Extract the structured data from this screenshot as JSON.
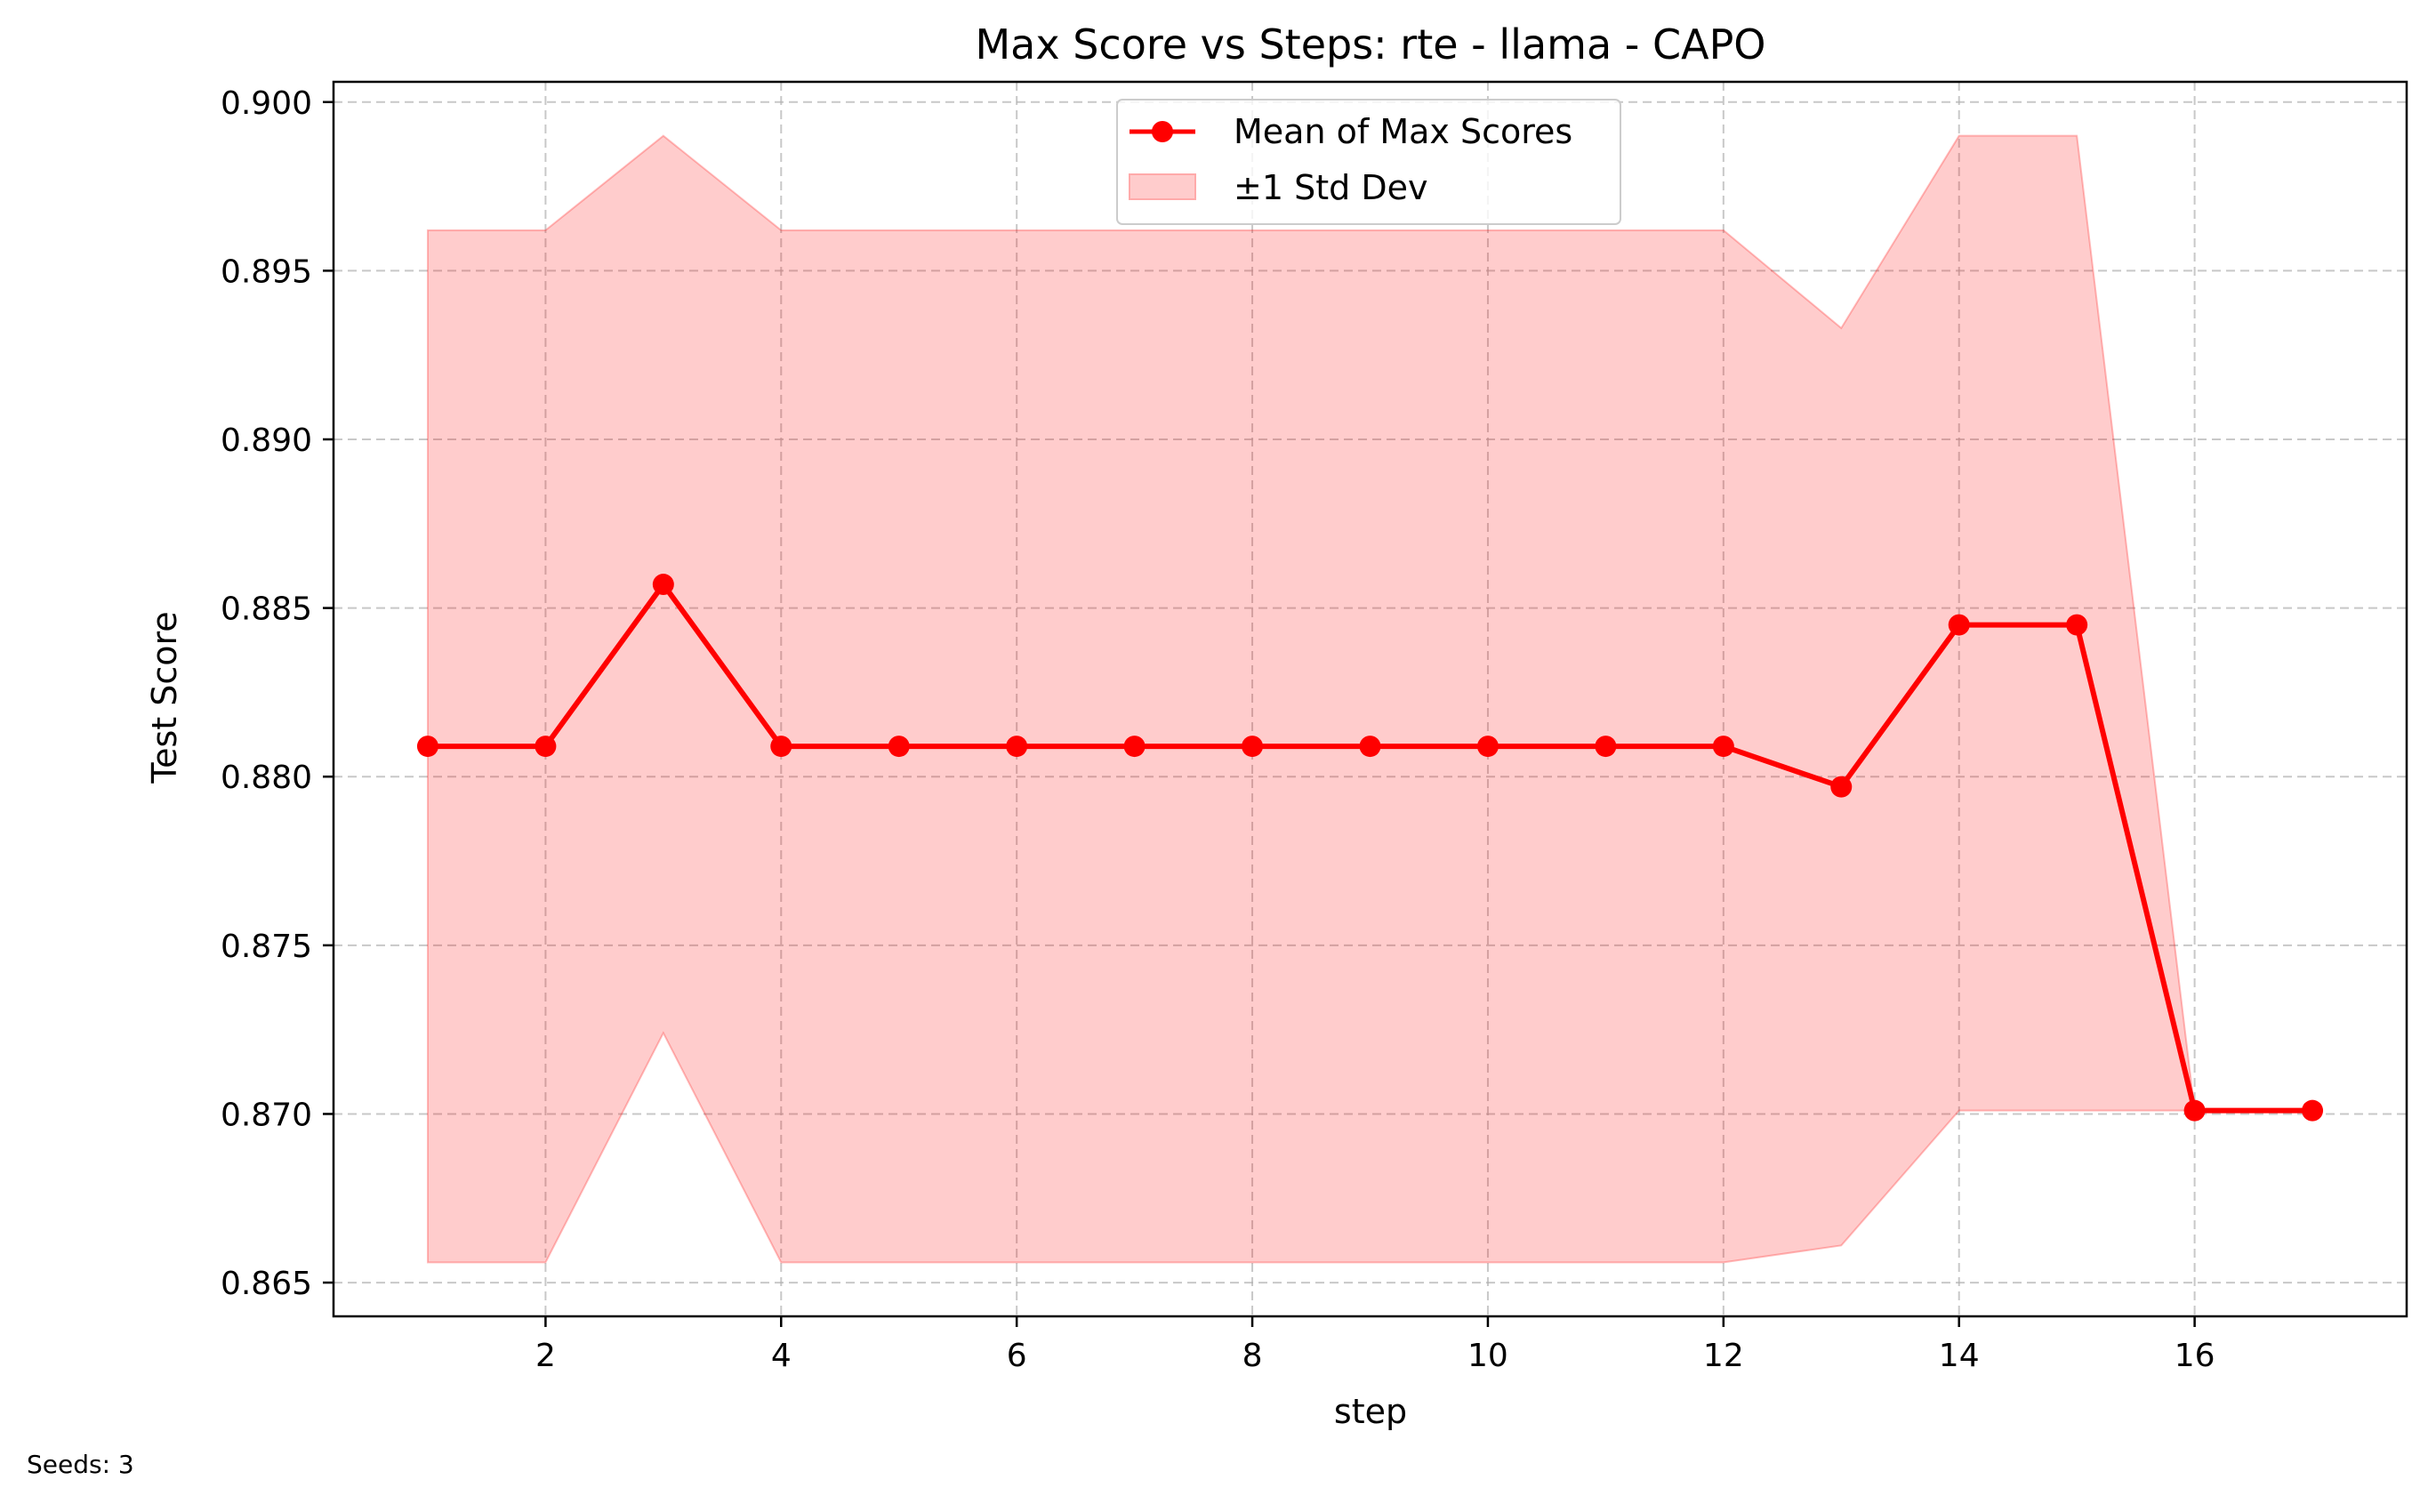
{
  "chart_data": {
    "type": "line",
    "title": "Max Score vs Steps: rte - llama - CAPO",
    "xlabel": "step",
    "ylabel": "Test Score",
    "x": [
      1,
      2,
      3,
      4,
      5,
      6,
      7,
      8,
      9,
      10,
      11,
      12,
      13,
      14,
      15,
      16,
      17
    ],
    "series": [
      {
        "name": "Mean of Max Scores",
        "color": "#ff0000",
        "values": [
          0.8809,
          0.8809,
          0.8857,
          0.8809,
          0.8809,
          0.8809,
          0.8809,
          0.8809,
          0.8809,
          0.8809,
          0.8809,
          0.8809,
          0.8797,
          0.8845,
          0.8845,
          0.8701,
          0.8701
        ]
      }
    ],
    "band": {
      "name": "±1 Std Dev",
      "color": "#ff0000",
      "opacity": 0.2,
      "upper": [
        0.8962,
        0.8962,
        0.899,
        0.8962,
        0.8962,
        0.8962,
        0.8962,
        0.8962,
        0.8962,
        0.8962,
        0.8962,
        0.8962,
        0.8933,
        0.899,
        0.899,
        0.8701,
        0.8701
      ],
      "lower": [
        0.8656,
        0.8656,
        0.8724,
        0.8656,
        0.8656,
        0.8656,
        0.8656,
        0.8656,
        0.8656,
        0.8656,
        0.8656,
        0.8656,
        0.8661,
        0.8701,
        0.8701,
        0.8701,
        0.8701
      ]
    },
    "xticks": [
      2,
      4,
      6,
      8,
      10,
      12,
      14,
      16
    ],
    "yticks": [
      0.865,
      0.87,
      0.875,
      0.88,
      0.885,
      0.89,
      0.895,
      0.9
    ],
    "ytick_labels": [
      "0.865",
      "0.870",
      "0.875",
      "0.880",
      "0.885",
      "0.890",
      "0.895",
      "0.900"
    ],
    "xlim": [
      0.2,
      17.8
    ],
    "ylim": [
      0.864,
      0.9006
    ],
    "grid": true,
    "legend_position": "top-center"
  },
  "footnote": "Seeds: 3"
}
